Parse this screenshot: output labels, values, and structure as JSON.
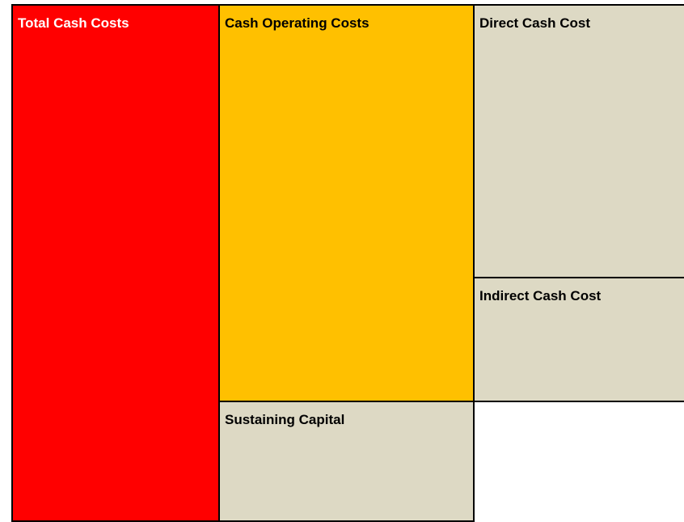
{
  "nodes": [
    {
      "label": "Total Cash Costs"
    },
    {
      "label": "Cash Operating Costs"
    },
    {
      "label": "Direct Cash Cost"
    },
    {
      "label": "Indirect Cash Cost"
    },
    {
      "label": "Sustaining Capital"
    }
  ]
}
